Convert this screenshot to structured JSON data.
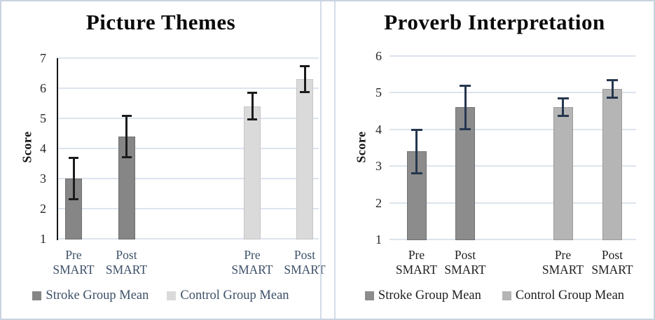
{
  "chart_data": [
    {
      "type": "bar",
      "title": "Picture Themes",
      "ylabel": "Score",
      "ylim": [
        1,
        7
      ],
      "yticks": [
        7,
        6,
        5,
        4,
        3,
        2,
        1
      ],
      "grid": true,
      "legend_position": "bottom",
      "categories": [
        [
          "Pre",
          "SMART"
        ],
        [
          "Post",
          "SMART"
        ],
        [
          "Pre",
          "SMART"
        ],
        [
          "Post",
          "SMART"
        ]
      ],
      "series": [
        {
          "name": "Stroke Group Mean",
          "color": "#868686",
          "border": "#6e6e6e",
          "values": [
            3.0,
            4.4
          ],
          "error": [
            0.7,
            0.7
          ]
        },
        {
          "name": "Control Group Mean",
          "color": "#dadada",
          "border": "#c6c6c6",
          "values": [
            5.4,
            6.3
          ],
          "error": [
            0.45,
            0.45
          ]
        }
      ],
      "error_color": "#1c1c1c",
      "category_color": "#3d5068",
      "legend_color": "#3d5068",
      "tick_color": "#252525"
    },
    {
      "type": "bar",
      "title": "Proverb Interpretation",
      "ylabel": "Score",
      "ylim": [
        1,
        6
      ],
      "yticks": [
        6,
        5,
        4,
        3,
        2,
        1
      ],
      "grid": true,
      "legend_position": "bottom",
      "categories": [
        [
          "Pre",
          "SMART"
        ],
        [
          "Post",
          "SMART"
        ],
        [
          "Pre",
          "SMART"
        ],
        [
          "Post",
          "SMART"
        ]
      ],
      "series": [
        {
          "name": "Stroke Group Mean",
          "color": "#8c8c8c",
          "border": "#717171",
          "values": [
            3.4,
            4.6
          ],
          "error": [
            0.6,
            0.6
          ]
        },
        {
          "name": "Control Group Mean",
          "color": "#b5b5b5",
          "border": "#9a9a9a",
          "values": [
            4.6,
            5.1
          ],
          "error": [
            0.25,
            0.25
          ]
        }
      ],
      "error_color": "#26374f",
      "category_color": "#1f1f1f",
      "legend_color": "#1f1f1f",
      "tick_color": "#252525"
    }
  ]
}
